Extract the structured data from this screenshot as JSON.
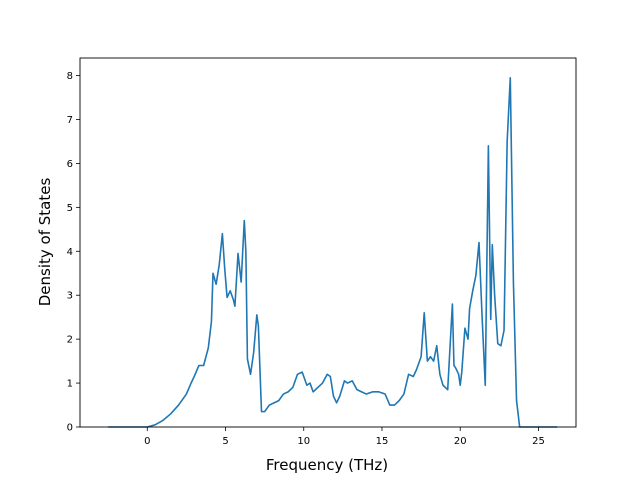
{
  "chart_data": {
    "type": "line",
    "title": "",
    "xlabel": "Frequency (THz)",
    "ylabel": "Density of States",
    "xlim": [
      -4.3,
      27.4
    ],
    "ylim": [
      0,
      8.4
    ],
    "xticks": [
      0,
      5,
      10,
      15,
      20,
      25
    ],
    "yticks": [
      0,
      1,
      2,
      3,
      4,
      5,
      6,
      7,
      8
    ],
    "grid": false,
    "legend": "none",
    "colors": {
      "line": "#1f77b4",
      "axes": "#000000",
      "background": "#ffffff"
    },
    "series": [
      {
        "x": [
          -2.5,
          -1.0,
          0.0,
          0.5,
          1.0,
          1.5,
          2.0,
          2.5,
          2.8,
          3.0,
          3.3,
          3.6,
          3.9,
          4.1,
          4.2,
          4.4,
          4.6,
          4.8,
          4.95,
          5.1,
          5.3,
          5.5,
          5.6,
          5.8,
          6.0,
          6.2,
          6.3,
          6.4,
          6.6,
          6.8,
          7.0,
          7.1,
          7.3,
          7.5,
          7.8,
          8.1,
          8.4,
          8.7,
          9.0,
          9.3,
          9.6,
          9.9,
          10.2,
          10.4,
          10.6,
          10.9,
          11.2,
          11.5,
          11.7,
          11.9,
          12.1,
          12.3,
          12.6,
          12.8,
          13.1,
          13.4,
          13.7,
          14.0,
          14.4,
          14.8,
          15.2,
          15.5,
          15.8,
          16.1,
          16.4,
          16.7,
          17.0,
          17.2,
          17.5,
          17.7,
          17.9,
          18.1,
          18.3,
          18.5,
          18.7,
          18.9,
          19.2,
          19.5,
          19.6,
          19.7,
          19.9,
          20.0,
          20.1,
          20.3,
          20.5,
          20.6,
          20.7,
          20.8,
          21.0,
          21.2,
          21.4,
          21.6,
          21.8,
          21.95,
          22.05,
          22.2,
          22.4,
          22.6,
          22.8,
          23.0,
          23.2,
          23.4,
          23.6,
          23.8,
          24.0,
          24.5,
          25.5,
          26.2
        ],
        "y": [
          0.0,
          0.0,
          0.0,
          0.05,
          0.15,
          0.3,
          0.5,
          0.75,
          1.0,
          1.15,
          1.4,
          1.4,
          1.8,
          2.4,
          3.5,
          3.25,
          3.7,
          4.4,
          3.6,
          2.95,
          3.1,
          2.9,
          2.75,
          3.95,
          3.3,
          4.7,
          4.0,
          1.55,
          1.2,
          1.7,
          2.55,
          2.3,
          0.35,
          0.35,
          0.5,
          0.55,
          0.6,
          0.75,
          0.8,
          0.9,
          1.2,
          1.25,
          0.95,
          1.0,
          0.8,
          0.9,
          1.0,
          1.2,
          1.15,
          0.7,
          0.55,
          0.7,
          1.05,
          1.0,
          1.05,
          0.85,
          0.8,
          0.75,
          0.8,
          0.8,
          0.75,
          0.5,
          0.5,
          0.6,
          0.75,
          1.2,
          1.15,
          1.3,
          1.6,
          2.6,
          1.5,
          1.6,
          1.5,
          1.85,
          1.2,
          0.95,
          0.85,
          2.8,
          1.4,
          1.35,
          1.2,
          0.95,
          1.25,
          2.25,
          2.0,
          2.7,
          2.9,
          3.1,
          3.45,
          4.2,
          2.5,
          0.95,
          6.4,
          2.45,
          4.15,
          3.0,
          1.9,
          1.85,
          2.2,
          6.5,
          7.95,
          3.3,
          0.6,
          0.0,
          0.0,
          0.0,
          0.0,
          0.0
        ]
      }
    ]
  }
}
